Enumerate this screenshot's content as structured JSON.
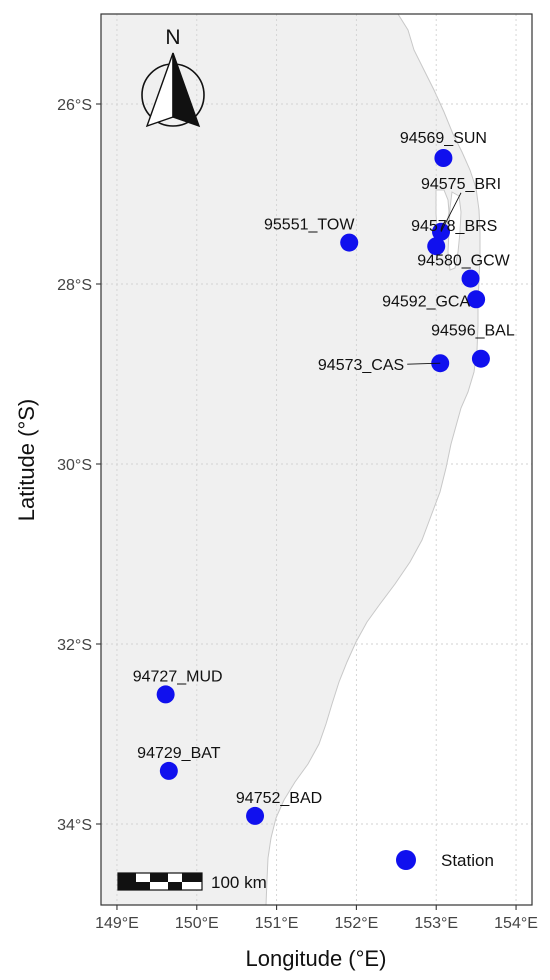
{
  "map": {
    "x_axis": {
      "title": "Longitude (°E)",
      "range": [
        148.8,
        154.2
      ],
      "ticks": [
        {
          "value": 149,
          "label": "149°E"
        },
        {
          "value": 150,
          "label": "150°E"
        },
        {
          "value": 151,
          "label": "151°E"
        },
        {
          "value": 152,
          "label": "152°E"
        },
        {
          "value": 153,
          "label": "153°E"
        },
        {
          "value": 154,
          "label": "154°E"
        }
      ]
    },
    "y_axis": {
      "title": "Latitude (°S)",
      "range": [
        -25.0,
        -34.9
      ],
      "ticks": [
        {
          "value": -26,
          "label": "26°S"
        },
        {
          "value": -28,
          "label": "28°S"
        },
        {
          "value": -30,
          "label": "30°S"
        },
        {
          "value": -32,
          "label": "32°S"
        },
        {
          "value": -34,
          "label": "34°S"
        }
      ]
    },
    "grid": true,
    "north_arrow_label": "N",
    "scale_bar_label": "100 km",
    "legend": {
      "label": "Station",
      "position": "bottom-right"
    },
    "colors": {
      "station": "#1010ee",
      "land": "#f0f0f0",
      "coast": "#c8c8c8",
      "grid": "#d2d2d2",
      "frame": "#333333"
    }
  },
  "chart_data": {
    "type": "scatter",
    "x_label": "Longitude (°E)",
    "y_label": "Latitude (°S)",
    "series": [
      {
        "name": "Station",
        "points": [
          {
            "label": "94569_SUN",
            "lon": 153.09,
            "lat": -26.6
          },
          {
            "label": "94575_BRI",
            "lon": 153.06,
            "lat": -27.42
          },
          {
            "label": "94578_BRS",
            "lon": 153.0,
            "lat": -27.58
          },
          {
            "label": "95551_TOW",
            "lon": 151.91,
            "lat": -27.54
          },
          {
            "label": "94580_GCW",
            "lon": 153.43,
            "lat": -27.94
          },
          {
            "label": "94592_GCA",
            "lon": 153.5,
            "lat": -28.17
          },
          {
            "label": "94596_BAL",
            "lon": 153.56,
            "lat": -28.83
          },
          {
            "label": "94573_CAS",
            "lon": 153.05,
            "lat": -28.88
          },
          {
            "label": "94727_MUD",
            "lon": 149.61,
            "lat": -32.56
          },
          {
            "label": "94729_BAT",
            "lon": 149.65,
            "lat": -33.41
          },
          {
            "label": "94752_BAD",
            "lon": 150.73,
            "lat": -33.91
          }
        ]
      }
    ]
  }
}
